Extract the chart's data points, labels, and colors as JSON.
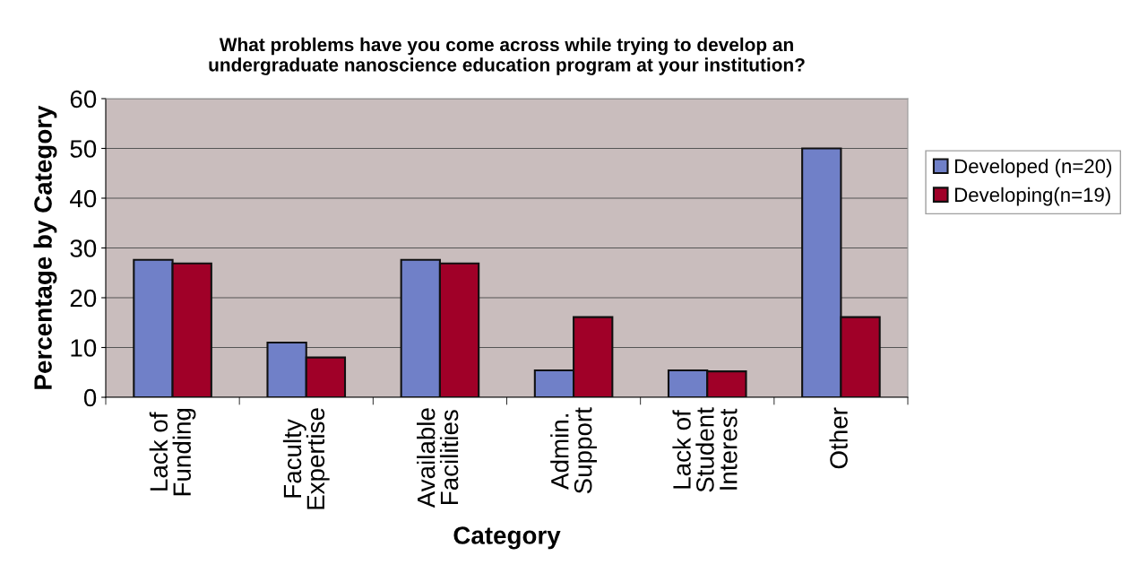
{
  "chart_data": {
    "type": "bar",
    "title": "What problems have you come across while trying to develop an\nundergraduate nanoscience education program at your institution?",
    "xlabel": "Category",
    "ylabel": "Percentage by Category",
    "categories": [
      "Lack of\nFunding",
      "Faculty\nExpertise",
      "Available\nFacilities",
      "Admin.\nSupport",
      "Lack of\nStudent\nInterest",
      "Other"
    ],
    "series": [
      {
        "name": "Developed (n=20)",
        "color": "#7080c8",
        "values": [
          27.6,
          11,
          27.6,
          5.4,
          5.4,
          50
        ]
      },
      {
        "name": "Developing(n=19)",
        "color": "#a00028",
        "values": [
          26.9,
          8,
          26.9,
          16.1,
          5.2,
          16.1
        ]
      }
    ],
    "ylim": [
      0,
      60
    ],
    "yticks": [
      0,
      10,
      20,
      30,
      40,
      50,
      60
    ],
    "grid": "y",
    "legend": "right"
  }
}
